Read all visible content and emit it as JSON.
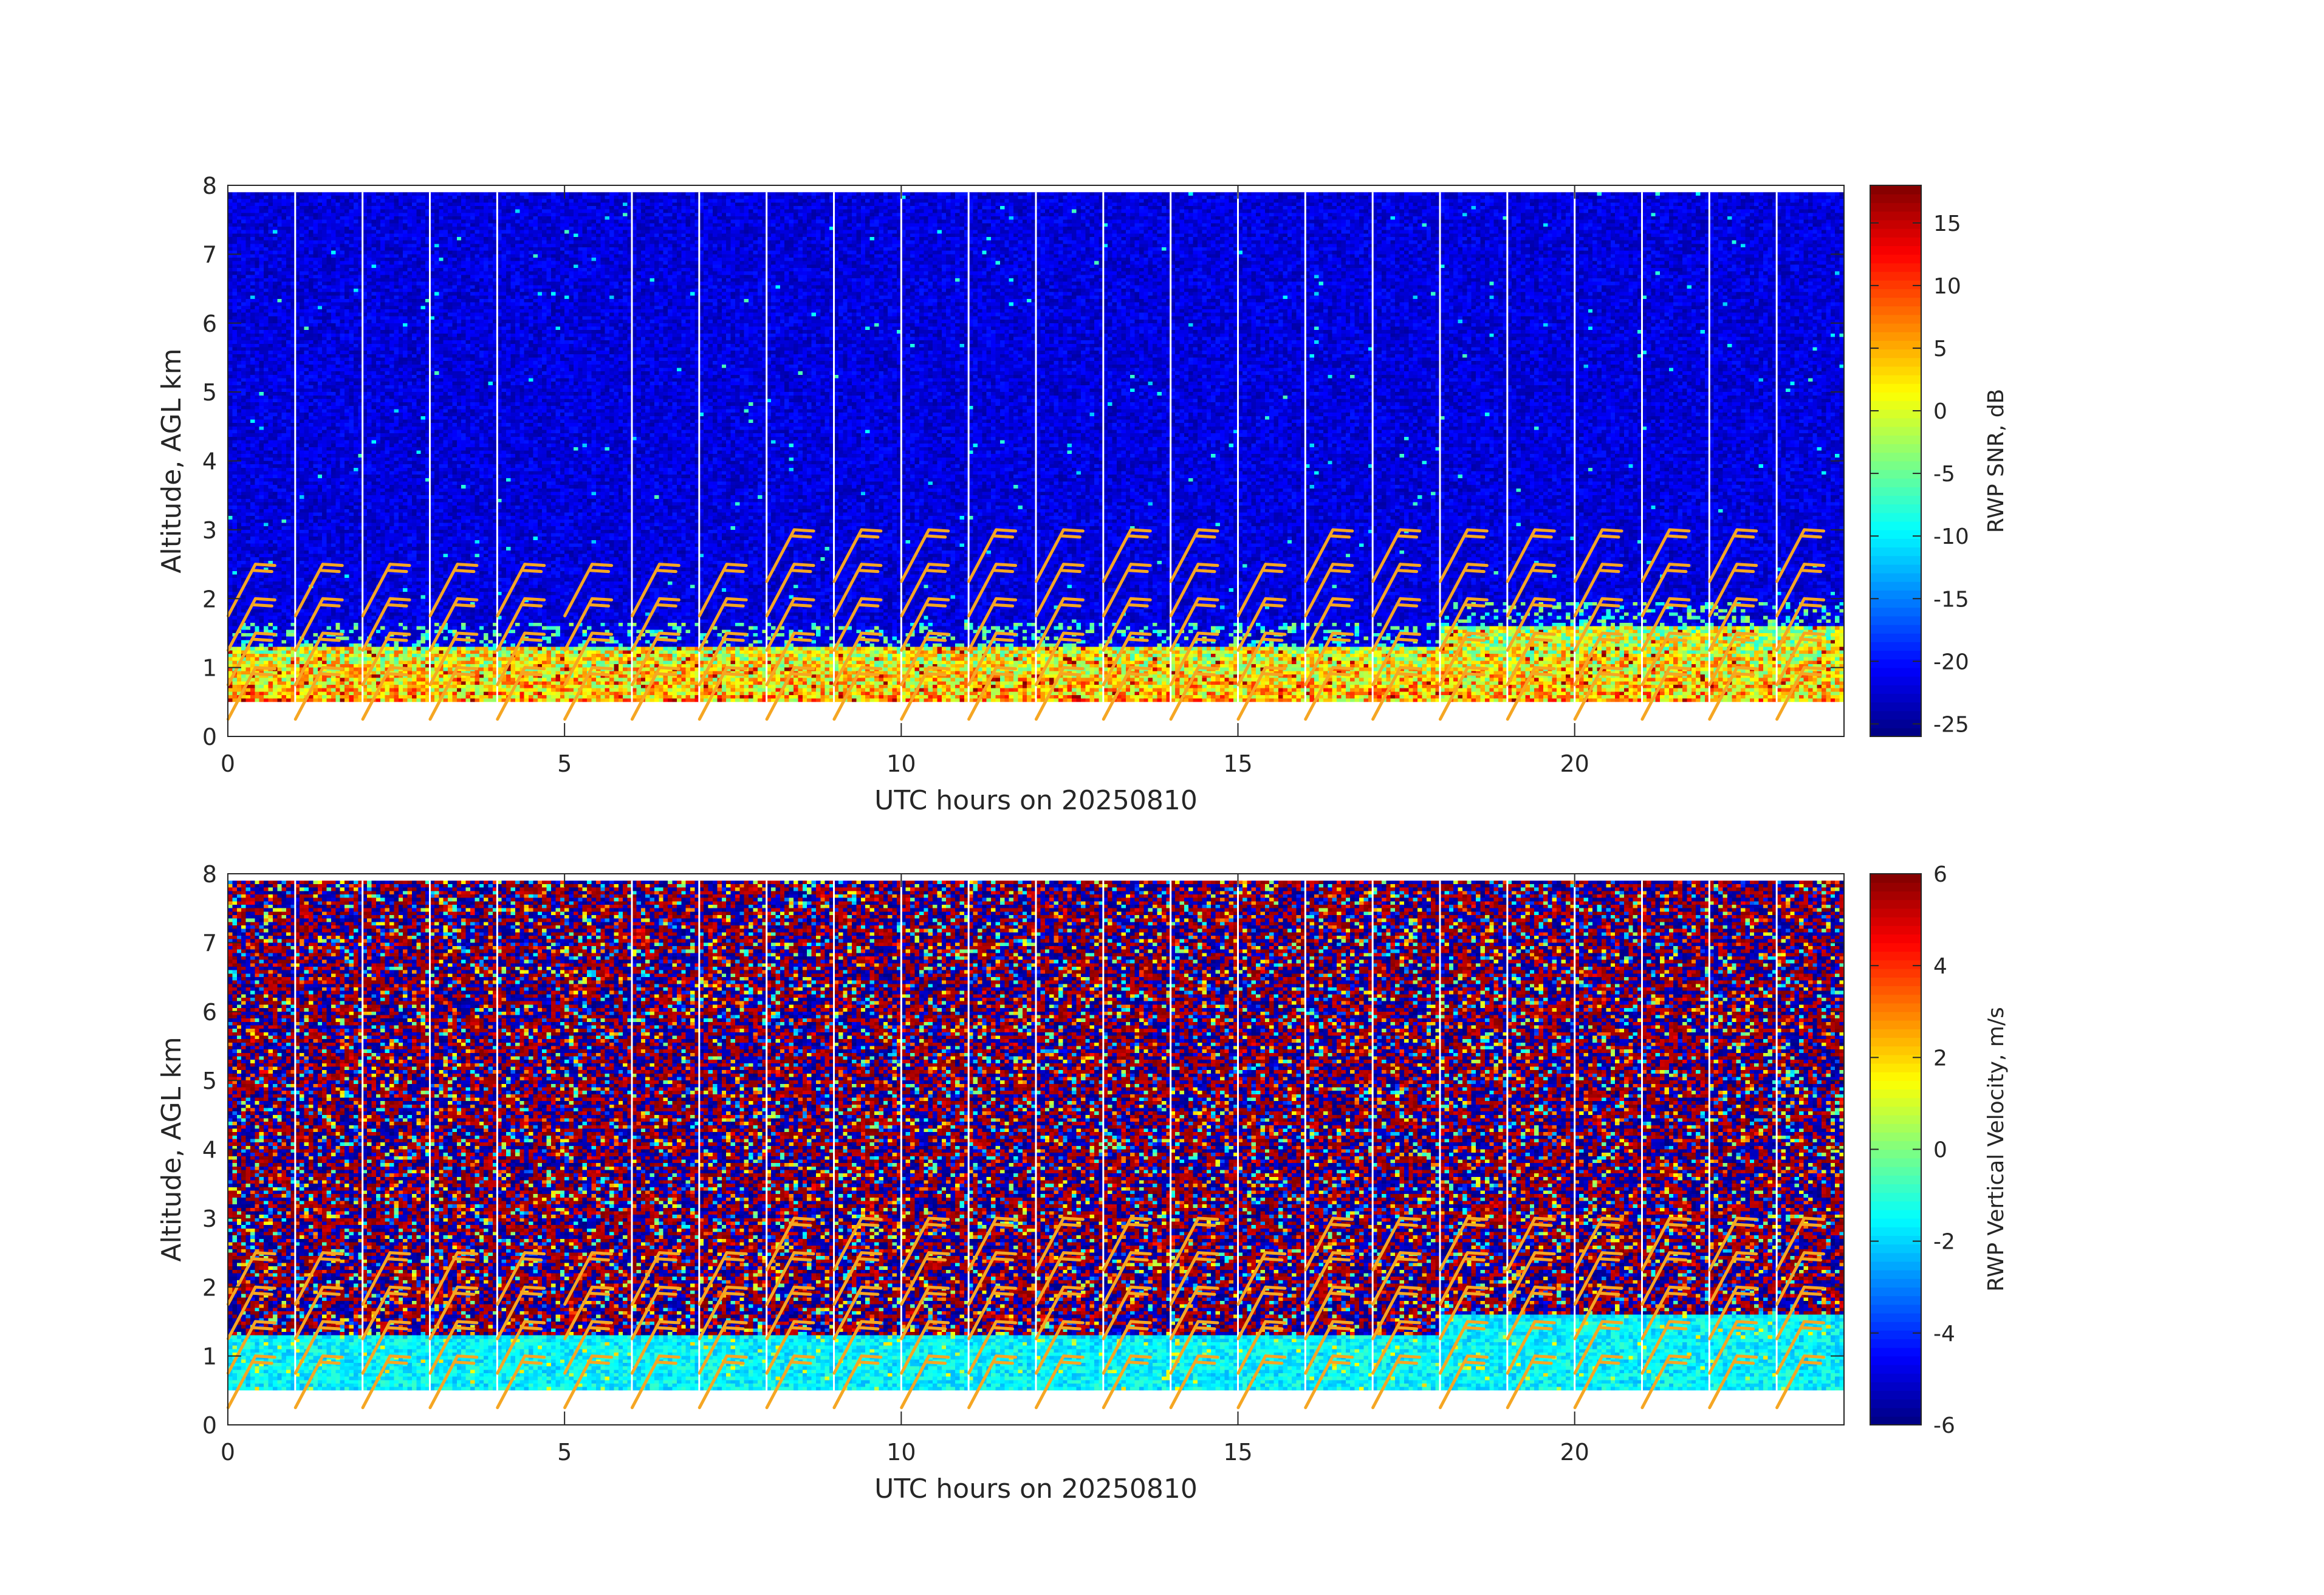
{
  "chart_data": [
    {
      "type": "heatmap",
      "name": "snr",
      "xlabel": "UTC hours on 20250810",
      "ylabel": "Altitude, AGL km",
      "xlim": [
        0,
        24
      ],
      "ylim": [
        0,
        8
      ],
      "xticks": [
        0,
        5,
        10,
        15,
        20
      ],
      "yticks": [
        0,
        1,
        2,
        3,
        4,
        5,
        6,
        7,
        8
      ],
      "data_altitude_range_km": [
        0.5,
        7.9
      ],
      "colorbar": {
        "label": "RWP SNR, dB",
        "colormap": "jet",
        "range": [
          -26,
          18
        ],
        "ticks": [
          -25,
          -20,
          -15,
          -10,
          -5,
          0,
          5,
          10,
          15
        ]
      },
      "description_values": {
        "background_snr_db": -22,
        "boundary_layer_top_km": 1.3,
        "boundary_layer_snr_db": [
          0,
          15
        ]
      },
      "gap_hours": [
        1,
        2,
        3,
        4,
        6,
        7,
        8,
        9,
        10,
        11,
        12,
        13,
        14,
        15,
        16,
        17,
        18,
        19,
        20,
        21,
        22,
        23
      ],
      "wind_barbs_color": "#f5a623",
      "wind_barb_hours": [
        0.5,
        1.5,
        2.5,
        3.5,
        4.5,
        5.5,
        6.5,
        7.5,
        8.5,
        9.5,
        10.5,
        11.5,
        12.5,
        13.5,
        14.5,
        15.5,
        16.5,
        17.5,
        18.5,
        19.5,
        20.5,
        21.5,
        22.5,
        23.5
      ],
      "wind_barb_altitudes_km": [
        0.5,
        1.0,
        1.5,
        2.0,
        2.5
      ]
    },
    {
      "type": "heatmap",
      "name": "vertical-velocity",
      "xlabel": "UTC hours on 20250810",
      "ylabel": "Altitude, AGL km",
      "xlim": [
        0,
        24
      ],
      "ylim": [
        0,
        8
      ],
      "xticks": [
        0,
        5,
        10,
        15,
        20
      ],
      "yticks": [
        0,
        1,
        2,
        3,
        4,
        5,
        6,
        7,
        8
      ],
      "data_altitude_range_km": [
        0.5,
        7.9
      ],
      "colorbar": {
        "label": "RWP Vertical Velocity, m/s",
        "colormap": "jet",
        "range": [
          -6,
          6
        ],
        "ticks": [
          -6,
          -4,
          -2,
          0,
          2,
          4,
          6
        ]
      },
      "description_values": {
        "boundary_layer_top_km": 1.3,
        "boundary_layer_velocity_ms": -1.5,
        "upper_noise_range_ms": [
          -6,
          6
        ]
      },
      "gap_hours": [
        1,
        2,
        3,
        4,
        6,
        7,
        8,
        9,
        10,
        11,
        12,
        13,
        14,
        15,
        16,
        17,
        18,
        19,
        20,
        21,
        22,
        23
      ],
      "wind_barbs_color": "#f5a623",
      "wind_barb_hours": [
        0.5,
        1.5,
        2.5,
        3.5,
        4.5,
        5.5,
        6.5,
        7.5,
        8.5,
        9.5,
        10.5,
        11.5,
        12.5,
        13.5,
        14.5,
        15.5,
        16.5,
        17.5,
        18.5,
        19.5,
        20.5,
        21.5,
        22.5,
        23.5
      ],
      "wind_barb_altitudes_km": [
        0.5,
        1.0,
        1.5,
        2.0,
        2.5
      ]
    }
  ]
}
